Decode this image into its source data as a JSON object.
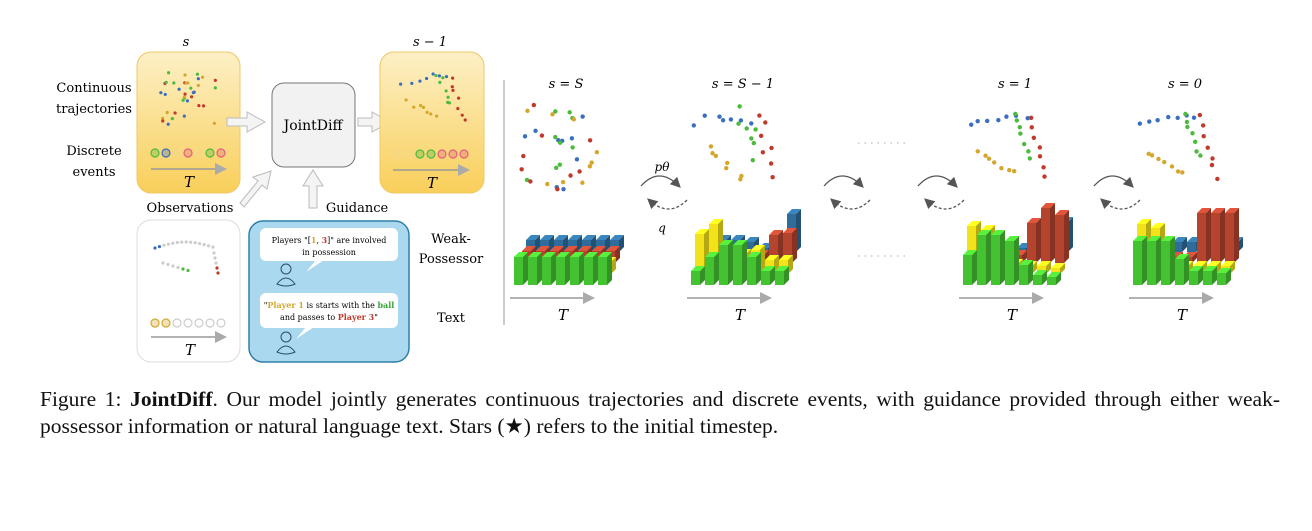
{
  "figure": {
    "left": {
      "step_label_current": "s",
      "step_label_next": "s − 1",
      "row_label_continuous": [
        "Continuous",
        "trajectories"
      ],
      "row_label_discrete": [
        "Discrete",
        "events"
      ],
      "model_label": "JointDiff",
      "observations_label": "Observations",
      "guidance_label": "Guidance",
      "guidance_type_weak": [
        "Weak-",
        "Possessor"
      ],
      "guidance_type_text": "Text",
      "time_axis_label": "T",
      "weak_possessor_bubble": {
        "prefix": "Players \"[",
        "player_a": "1",
        "sep": ", ",
        "player_b": "3",
        "suffix": "]\" are involved",
        "line2": "in possession"
      },
      "text_bubble": {
        "quote_open": "\"",
        "player_1": "Player 1",
        "middle": " is starts with the ",
        "ball": "ball",
        "line2_prefix": "and passes to ",
        "player_3": "Player 3",
        "quote_close": "\""
      }
    },
    "right": {
      "steps": [
        "s = S",
        "s = S − 1",
        "s = 1",
        "s = 0"
      ],
      "forward_label": "pθ",
      "reverse_label": "q",
      "time_axis_label": "T"
    },
    "colors": {
      "player_blue": "#3a6fbf",
      "player_red": "#c0392b",
      "player_green": "#4cbb3c",
      "player_yellow": "#d4a72c",
      "bar_green": "#45c232",
      "bar_yellow": "#f2e21a",
      "bar_red": "#b5442f",
      "bar_blue": "#2f6c9a",
      "state_box": "#fbd773",
      "guidance_box": "#aad8ee"
    }
  },
  "caption": {
    "label": "Figure 1: ",
    "title": "JointDiff",
    "text": ". Our model jointly generates continuous trajectories and discrete events, with guidance provided through either weak-possessor information or natural language text. Stars (★) refers to the initial timestep."
  }
}
